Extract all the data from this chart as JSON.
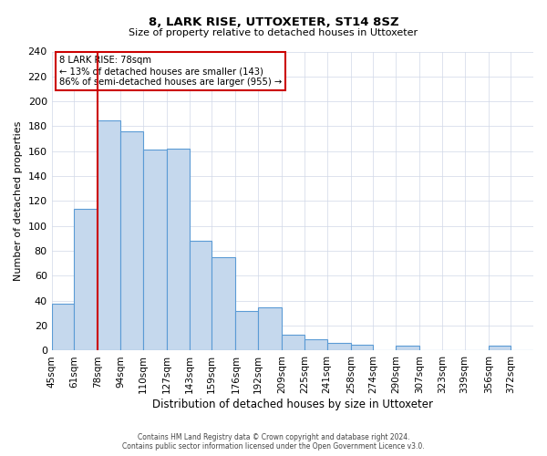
{
  "title": "8, LARK RISE, UTTOXETER, ST14 8SZ",
  "subtitle": "Size of property relative to detached houses in Uttoxeter",
  "xlabel": "Distribution of detached houses by size in Uttoxeter",
  "ylabel": "Number of detached properties",
  "bar_labels": [
    "45sqm",
    "61sqm",
    "78sqm",
    "94sqm",
    "110sqm",
    "127sqm",
    "143sqm",
    "159sqm",
    "176sqm",
    "192sqm",
    "209sqm",
    "225sqm",
    "241sqm",
    "258sqm",
    "274sqm",
    "290sqm",
    "307sqm",
    "323sqm",
    "339sqm",
    "356sqm",
    "372sqm"
  ],
  "bar_values": [
    38,
    114,
    185,
    176,
    161,
    162,
    88,
    75,
    32,
    35,
    13,
    9,
    6,
    5,
    0,
    4,
    0,
    0,
    0,
    4,
    0
  ],
  "bar_edges": [
    45,
    61,
    78,
    94,
    110,
    127,
    143,
    159,
    176,
    192,
    209,
    225,
    241,
    258,
    274,
    290,
    307,
    323,
    339,
    356,
    372,
    388
  ],
  "bar_color": "#c5d8ed",
  "bar_edge_color": "#5b9bd5",
  "vline_x": 78,
  "vline_color": "#cc0000",
  "annotation_title": "8 LARK RISE: 78sqm",
  "annotation_line1": "← 13% of detached houses are smaller (143)",
  "annotation_line2": "86% of semi-detached houses are larger (955) →",
  "annotation_box_color": "#cc0000",
  "ylim": [
    0,
    240
  ],
  "yticks": [
    0,
    20,
    40,
    60,
    80,
    100,
    120,
    140,
    160,
    180,
    200,
    220,
    240
  ],
  "footer1": "Contains HM Land Registry data © Crown copyright and database right 2024.",
  "footer2": "Contains public sector information licensed under the Open Government Licence v3.0.",
  "bg_color": "#ffffff",
  "grid_color": "#d0d8e8"
}
